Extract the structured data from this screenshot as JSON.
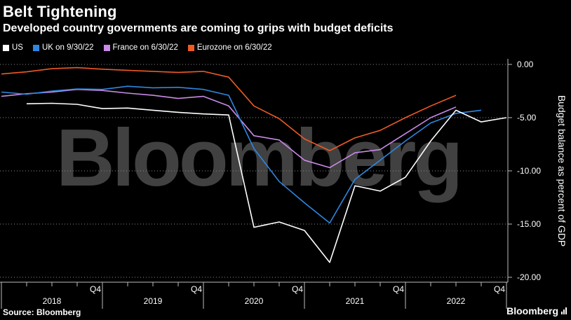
{
  "header": {
    "title": "Belt Tightening",
    "subtitle": "Developed country governments are coming to grips with budget deficits"
  },
  "footer": {
    "source": "Source: Bloomberg",
    "brand": "Bloomberg"
  },
  "watermark": "Bloomberg",
  "colors": {
    "background": "#000000",
    "US": "#ffffff",
    "UK": "#2f86e0",
    "France": "#c98ae8",
    "Eurozone": "#ee5a24"
  },
  "chart_data": {
    "type": "line",
    "title": "Belt Tightening",
    "subtitle": "Developed country governments are coming to grips with budget deficits",
    "ylabel": "Budget balance as percent of GDP",
    "xlabel": "",
    "ylim": [
      -20,
      0
    ],
    "yticks": [
      "0.00",
      "-5.00",
      "-10.00",
      "-15.00",
      "-20.00"
    ],
    "ytick_values": [
      0,
      -5,
      -10,
      -15,
      -20
    ],
    "quarter_ticks": [
      "Q4",
      "Q4",
      "Q4",
      "Q4",
      "Q4"
    ],
    "quarter_tick_index": [
      4,
      8,
      12,
      16,
      20
    ],
    "year_labels": [
      "2018",
      "2019",
      "2020",
      "2021",
      "2022"
    ],
    "year_label_index": [
      2,
      6,
      10,
      14,
      18
    ],
    "legend_position": "top-left",
    "grid": "horizontal-dotted",
    "series": [
      {
        "name": "US",
        "color": "#ffffff",
        "start_index": 1,
        "values": [
          -3.7,
          -3.65,
          -3.75,
          -4.15,
          -4.1,
          -4.3,
          -4.5,
          -4.65,
          -4.75,
          -15.3,
          -14.8,
          -15.6,
          -18.6,
          -11.4,
          -11.9,
          -10.6,
          -7.2,
          -4.3,
          -5.4,
          -5.0
        ]
      },
      {
        "name": "UK on 9/30/22",
        "color": "#2f86e0",
        "start_index": 0,
        "values": [
          -2.6,
          -2.8,
          -2.5,
          -2.3,
          -2.35,
          -2.05,
          -2.2,
          -2.15,
          -2.35,
          -2.9,
          -7.9,
          -11.0,
          -13.0,
          -14.9,
          -10.8,
          -9.0,
          -7.2,
          -5.5,
          -4.6,
          -4.3
        ]
      },
      {
        "name": "France on 6/30/22",
        "color": "#c98ae8",
        "start_index": 0,
        "values": [
          -3.0,
          -2.75,
          -2.6,
          -2.35,
          -2.45,
          -2.7,
          -2.9,
          -3.2,
          -3.0,
          -3.9,
          -6.7,
          -7.1,
          -9.0,
          -9.7,
          -8.3,
          -8.0,
          -6.5,
          -5.0,
          -4.0
        ]
      },
      {
        "name": "Eurozone on 6/30/22",
        "color": "#ee5a24",
        "start_index": 0,
        "values": [
          -0.9,
          -0.7,
          -0.4,
          -0.3,
          -0.45,
          -0.55,
          -0.65,
          -0.75,
          -0.65,
          -1.2,
          -3.9,
          -5.1,
          -7.0,
          -8.1,
          -6.9,
          -6.2,
          -5.0,
          -3.9,
          -2.9
        ]
      }
    ]
  }
}
